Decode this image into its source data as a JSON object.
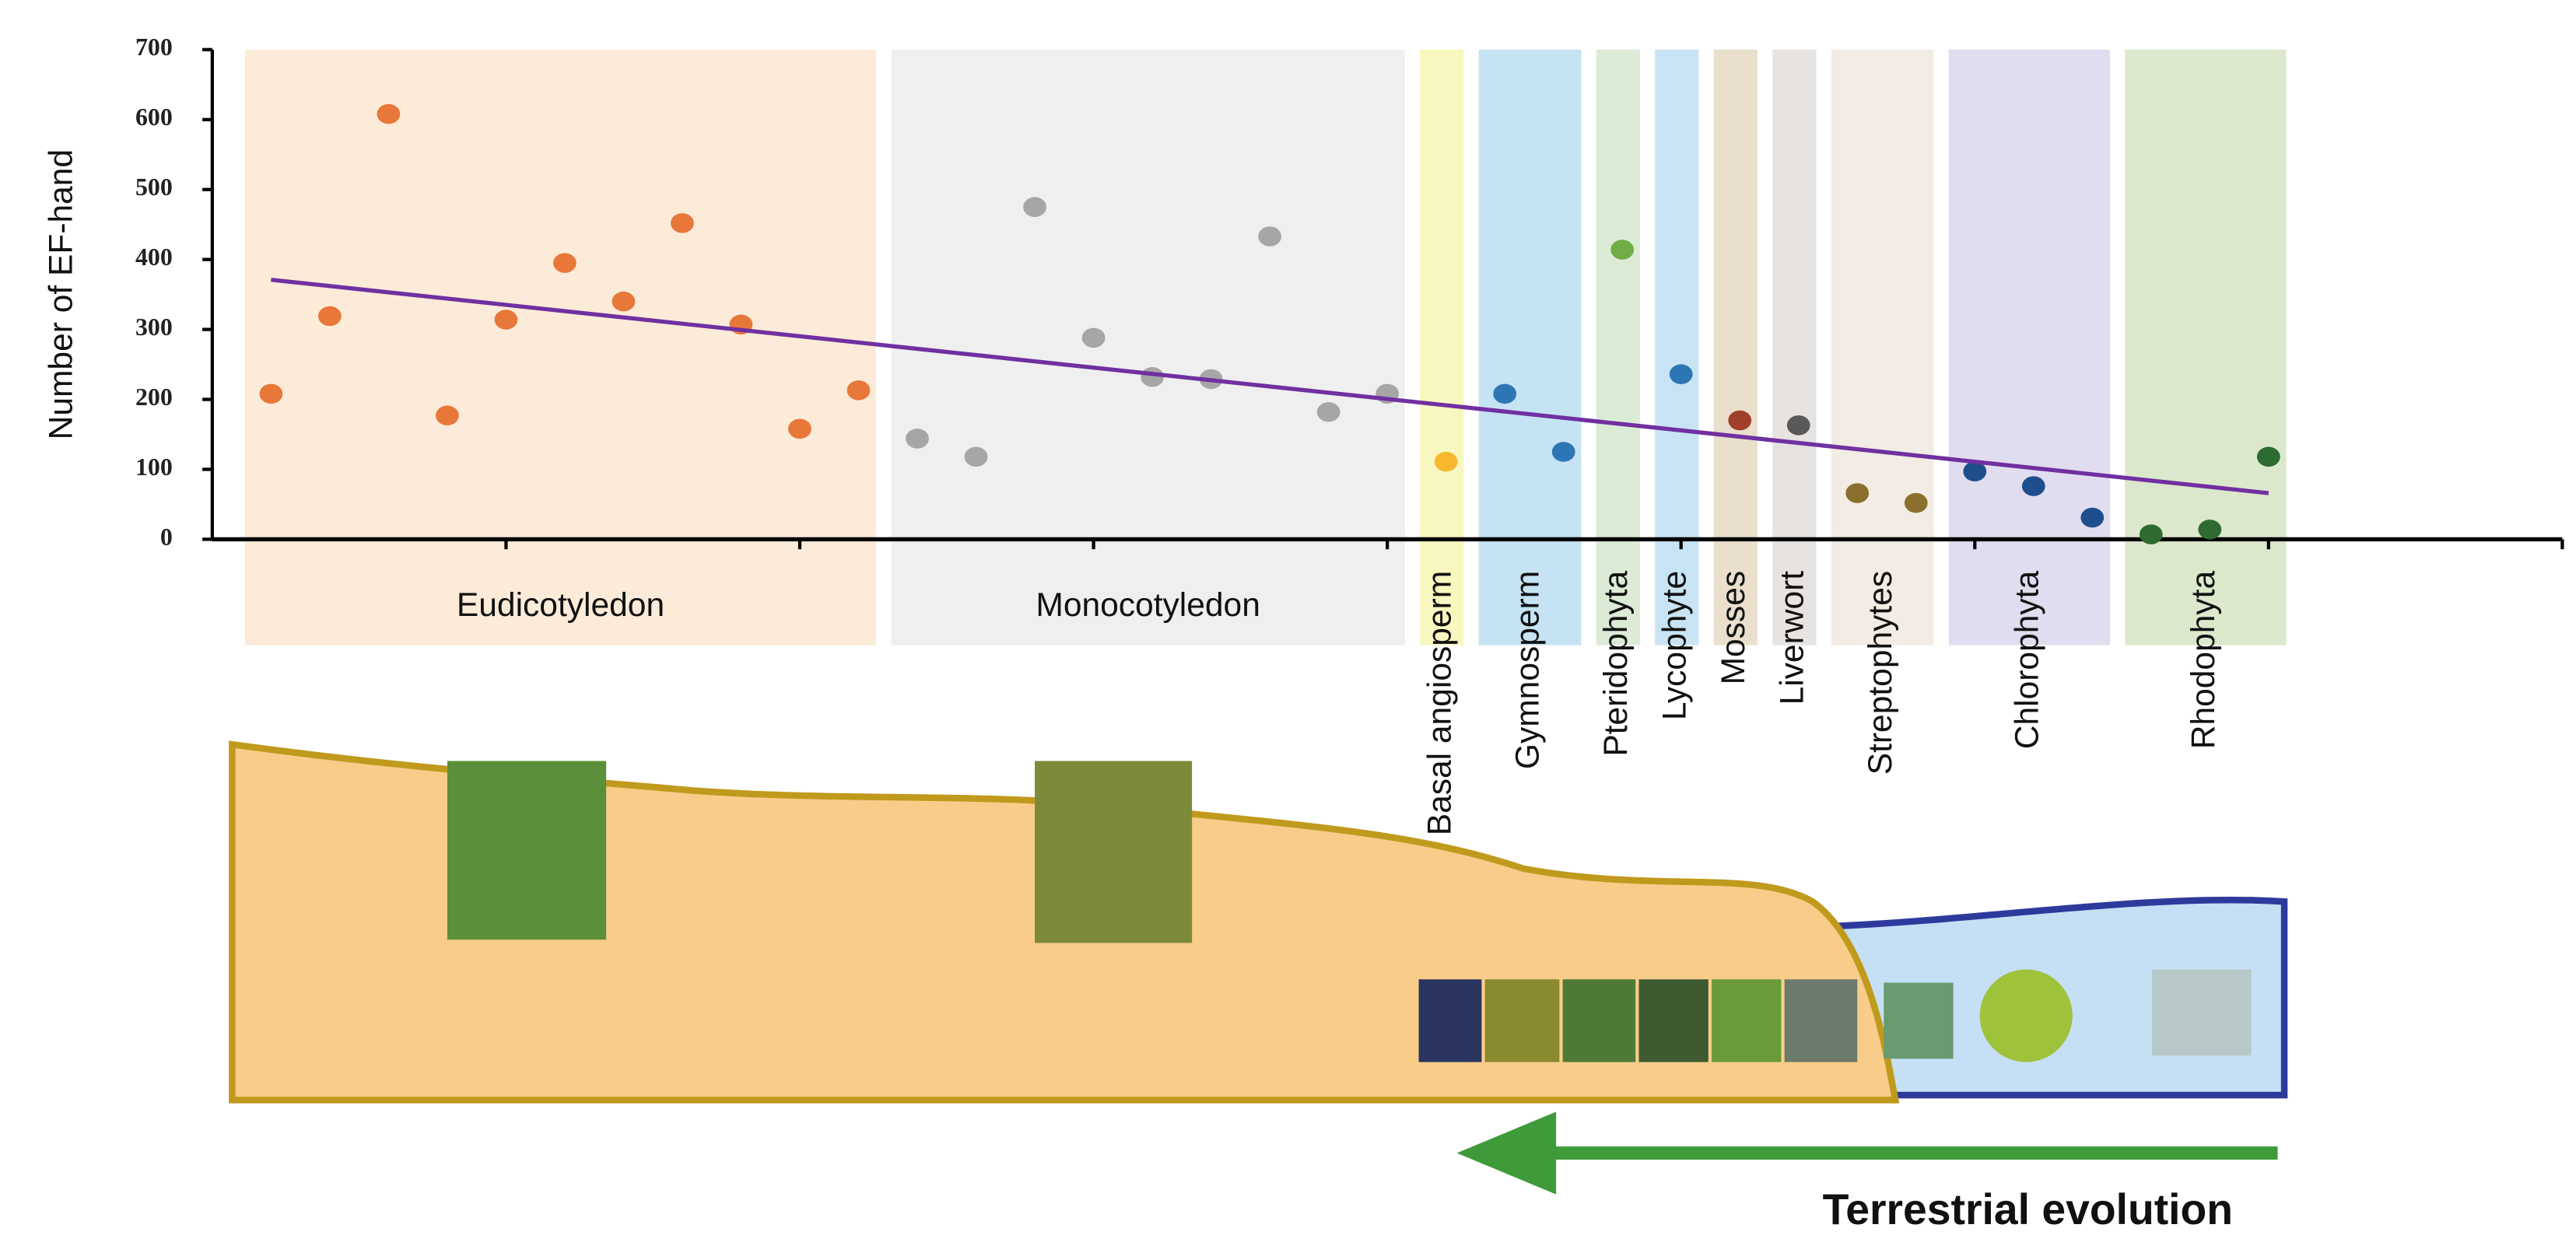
{
  "chart_data": {
    "type": "scatter",
    "y_label": "Number of EF-hand",
    "xlim": [
      0,
      40
    ],
    "xticks": [
      5,
      10,
      15,
      20,
      25,
      30,
      35,
      40
    ],
    "ylim": [
      0,
      700
    ],
    "yticks": [
      0,
      100,
      200,
      300,
      400,
      500,
      600,
      700
    ],
    "series": [
      {
        "name": "Eudicotyledon",
        "color": "#e8773a",
        "band_color": "#fdebd9",
        "x": [
          1,
          2,
          3,
          4,
          5,
          6,
          7,
          8,
          9,
          10,
          11
        ],
        "values": [
          208,
          319,
          608,
          177,
          314,
          395,
          340,
          452,
          307,
          158,
          213
        ]
      },
      {
        "name": "Monocotyledon",
        "color": "#a6a6a6",
        "band_color": "#efefef",
        "x": [
          12,
          13,
          14,
          15,
          16,
          17,
          18,
          19,
          20
        ],
        "values": [
          144,
          118,
          475,
          288,
          232,
          229,
          433,
          182,
          208
        ]
      },
      {
        "name": "Basal angiosperm",
        "color": "#f5b82e",
        "band_color": "#f8f7c0",
        "x": [
          21
        ],
        "values": [
          111
        ]
      },
      {
        "name": "Gymnosperm",
        "color": "#2e75b6",
        "band_color": "#c5e3f3",
        "x": [
          22,
          23
        ],
        "values": [
          208,
          125
        ]
      },
      {
        "name": "Pteridophyta",
        "color": "#70ad47",
        "band_color": "#dcebd6",
        "x": [
          24
        ],
        "values": [
          414
        ]
      },
      {
        "name": "Lycophyte",
        "color": "#2e75b6",
        "band_color": "#c8e4f4",
        "x": [
          25
        ],
        "values": [
          236
        ]
      },
      {
        "name": "Mosses",
        "color": "#a0402a",
        "band_color": "#e9dfcc",
        "x": [
          26
        ],
        "values": [
          170
        ]
      },
      {
        "name": "Liverwort",
        "color": "#595959",
        "band_color": "#e6e3e1",
        "x": [
          27
        ],
        "values": [
          163
        ]
      },
      {
        "name": "Streptophytes",
        "color": "#8b6f2e",
        "band_color": "#f2ece4",
        "x": [
          28,
          29
        ],
        "values": [
          66,
          52
        ]
      },
      {
        "name": "Chlorophyta",
        "color": "#1f4e8c",
        "band_color": "#e1ddf0",
        "x": [
          30,
          31,
          32
        ],
        "values": [
          97,
          76,
          31
        ]
      },
      {
        "name": "Rhodophyta",
        "color": "#2e6b30",
        "band_color": "#dce8cc",
        "x": [
          33,
          34,
          35
        ],
        "values": [
          7,
          14,
          118
        ]
      }
    ],
    "trendline": {
      "color": "#7030a0",
      "x": [
        1,
        35
      ],
      "values": [
        371,
        66
      ]
    },
    "annotation": "Terrestrial evolution"
  }
}
